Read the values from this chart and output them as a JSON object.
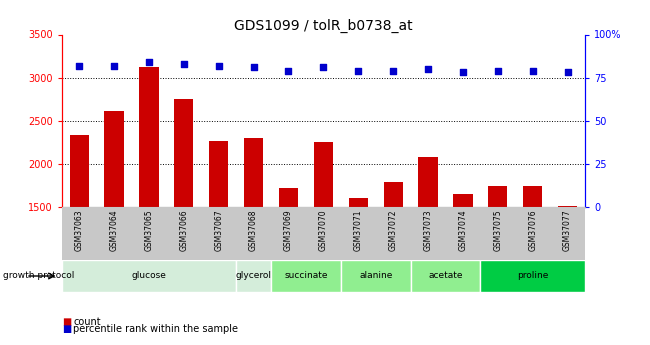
{
  "title": "GDS1099 / tolR_b0738_at",
  "samples": [
    "GSM37063",
    "GSM37064",
    "GSM37065",
    "GSM37066",
    "GSM37067",
    "GSM37068",
    "GSM37069",
    "GSM37070",
    "GSM37071",
    "GSM37072",
    "GSM37073",
    "GSM37074",
    "GSM37075",
    "GSM37076",
    "GSM37077"
  ],
  "counts": [
    2340,
    2610,
    3120,
    2750,
    2260,
    2300,
    1720,
    2250,
    1610,
    1790,
    2080,
    1650,
    1745,
    1745,
    1510
  ],
  "percentiles": [
    82,
    82,
    84,
    83,
    82,
    81,
    79,
    81,
    79,
    79,
    80,
    78,
    79,
    79,
    78
  ],
  "ylim_left": [
    1500,
    3500
  ],
  "ylim_right": [
    0,
    100
  ],
  "yticks_left": [
    1500,
    2000,
    2500,
    3000,
    3500
  ],
  "yticks_right": [
    0,
    25,
    50,
    75,
    100
  ],
  "bar_color": "#cc0000",
  "dot_color": "#0000cc",
  "bar_width": 0.55,
  "title_fontsize": 10,
  "tick_fontsize": 7,
  "group_spans": [
    [
      "glucose",
      0,
      4,
      "#d4edda"
    ],
    [
      "glycerol",
      5,
      5,
      "#d4edda"
    ],
    [
      "succinate",
      6,
      7,
      "#90ee90"
    ],
    [
      "alanine",
      8,
      9,
      "#90ee90"
    ],
    [
      "acetate",
      10,
      11,
      "#90ee90"
    ],
    [
      "proline",
      12,
      14,
      "#00cc44"
    ]
  ],
  "growth_protocol_label": "growth protocol",
  "legend_count_label": "count",
  "legend_pct_label": "percentile rank within the sample"
}
